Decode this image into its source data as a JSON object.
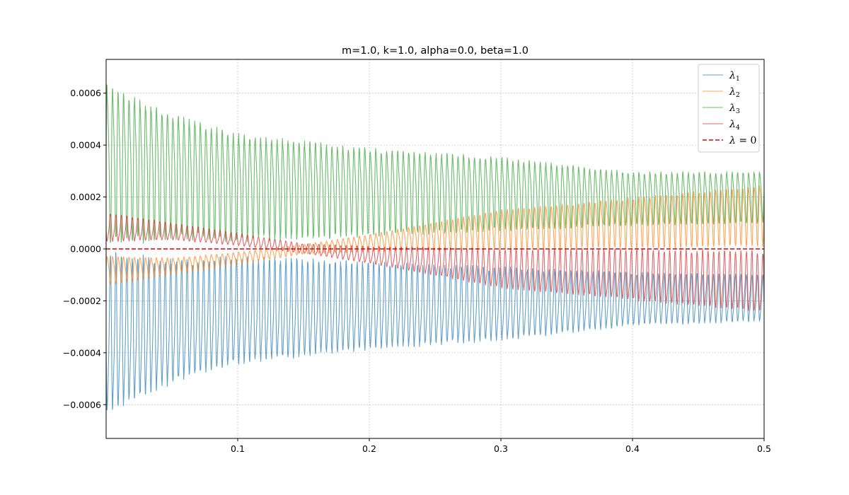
{
  "chart_data": {
    "type": "line",
    "title": "m=1.0, k=1.0, alpha=0.0, beta=1.0",
    "xlabel": "",
    "ylabel": "",
    "xlim": [
      0.0,
      0.5
    ],
    "ylim": [
      -0.00073,
      0.00073
    ],
    "x_ticks": [
      0.1,
      0.2,
      0.3,
      0.4,
      0.5
    ],
    "x_tick_labels": [
      "0.1",
      "0.2",
      "0.3",
      "0.4",
      "0.5"
    ],
    "y_ticks": [
      -0.0006,
      -0.0004,
      -0.0002,
      0.0,
      0.0002,
      0.0004,
      0.0006
    ],
    "y_tick_labels": [
      "−0.0006",
      "−0.0004",
      "−0.0002",
      "0.0000",
      "0.0002",
      "0.0004",
      "0.0006"
    ],
    "grid": true,
    "legend_position": "top-right",
    "series": [
      {
        "name": "λ1",
        "legend_symbol": "λ",
        "legend_subscript": "1",
        "color": "#1f77b4",
        "opacity": 0.7,
        "description_of_shape": "oscillation below zero, troughs shrink from about -0.00067 to about -0.00029, peaks near 0 early rising to about -0.00005",
        "envelope_points": [
          {
            "x": 0.0,
            "lower": -0.00067,
            "upper": -1e-05
          },
          {
            "x": 0.05,
            "lower": -0.00055,
            "upper": -4e-05
          },
          {
            "x": 0.1,
            "lower": -0.00047,
            "upper": -3e-05
          },
          {
            "x": 0.2,
            "lower": -0.00041,
            "upper": -5e-05
          },
          {
            "x": 0.3,
            "lower": -0.00037,
            "upper": -7e-05
          },
          {
            "x": 0.4,
            "lower": -0.00031,
            "upper": -9e-05
          },
          {
            "x": 0.5,
            "lower": -0.00029,
            "upper": -0.0001
          }
        ]
      },
      {
        "name": "λ2",
        "legend_symbol": "λ",
        "legend_subscript": "2",
        "color": "#ff7f0e",
        "opacity": 0.7,
        "description_of_shape": "small oscillation starting below zero around -0.0001, crossing zero near x=0.15 and growing to about 0.00026 at x=0.5",
        "envelope_points": [
          {
            "x": 0.0,
            "lower": -0.00014,
            "upper": -2e-05
          },
          {
            "x": 0.05,
            "lower": -0.0001,
            "upper": -3e-05
          },
          {
            "x": 0.1,
            "lower": -6e-05,
            "upper": -1e-05
          },
          {
            "x": 0.15,
            "lower": -2e-05,
            "upper": 2e-05
          },
          {
            "x": 0.2,
            "lower": -1e-05,
            "upper": 6e-05
          },
          {
            "x": 0.3,
            "lower": 0.0,
            "upper": 0.00016
          },
          {
            "x": 0.4,
            "lower": 0.0,
            "upper": 0.00021
          },
          {
            "x": 0.5,
            "lower": 1e-05,
            "upper": 0.00026
          }
        ]
      },
      {
        "name": "λ3",
        "legend_symbol": "λ",
        "legend_subscript": "3",
        "color": "#2ca02c",
        "opacity": 0.7,
        "description_of_shape": "oscillation above zero, peaks shrink from about 0.00067 to about 0.00031, troughs near 0",
        "envelope_points": [
          {
            "x": 0.0,
            "lower": 1e-05,
            "upper": 0.00067
          },
          {
            "x": 0.05,
            "lower": 4e-05,
            "upper": 0.00055
          },
          {
            "x": 0.1,
            "lower": 3e-05,
            "upper": 0.00047
          },
          {
            "x": 0.2,
            "lower": 5e-05,
            "upper": 0.00041
          },
          {
            "x": 0.3,
            "lower": 7e-05,
            "upper": 0.00037
          },
          {
            "x": 0.4,
            "lower": 9e-05,
            "upper": 0.00031
          },
          {
            "x": 0.5,
            "lower": 0.0001,
            "upper": 0.00031
          }
        ]
      },
      {
        "name": "λ4",
        "legend_symbol": "λ",
        "legend_subscript": "4",
        "color": "#d62728",
        "opacity": 0.7,
        "description_of_shape": "small oscillation starting above zero around 0.0001, crossing zero near x=0.15 and growing negative to about -0.00026 at x=0.5",
        "envelope_points": [
          {
            "x": 0.0,
            "lower": 2e-05,
            "upper": 0.00014
          },
          {
            "x": 0.05,
            "lower": 3e-05,
            "upper": 0.0001
          },
          {
            "x": 0.1,
            "lower": 1e-05,
            "upper": 6e-05
          },
          {
            "x": 0.15,
            "lower": -2e-05,
            "upper": 2e-05
          },
          {
            "x": 0.2,
            "lower": -6e-05,
            "upper": 1e-05
          },
          {
            "x": 0.3,
            "lower": -0.00016,
            "upper": 0.0
          },
          {
            "x": 0.4,
            "lower": -0.00021,
            "upper": 0.0
          },
          {
            "x": 0.5,
            "lower": -0.00026,
            "upper": -1e-05
          }
        ]
      },
      {
        "name": "λ = 0",
        "legend_symbol": "λ",
        "legend_suffix": " = 0",
        "color": "#dd0000",
        "line_style": "dashed",
        "y_constant": 0.0
      }
    ]
  }
}
